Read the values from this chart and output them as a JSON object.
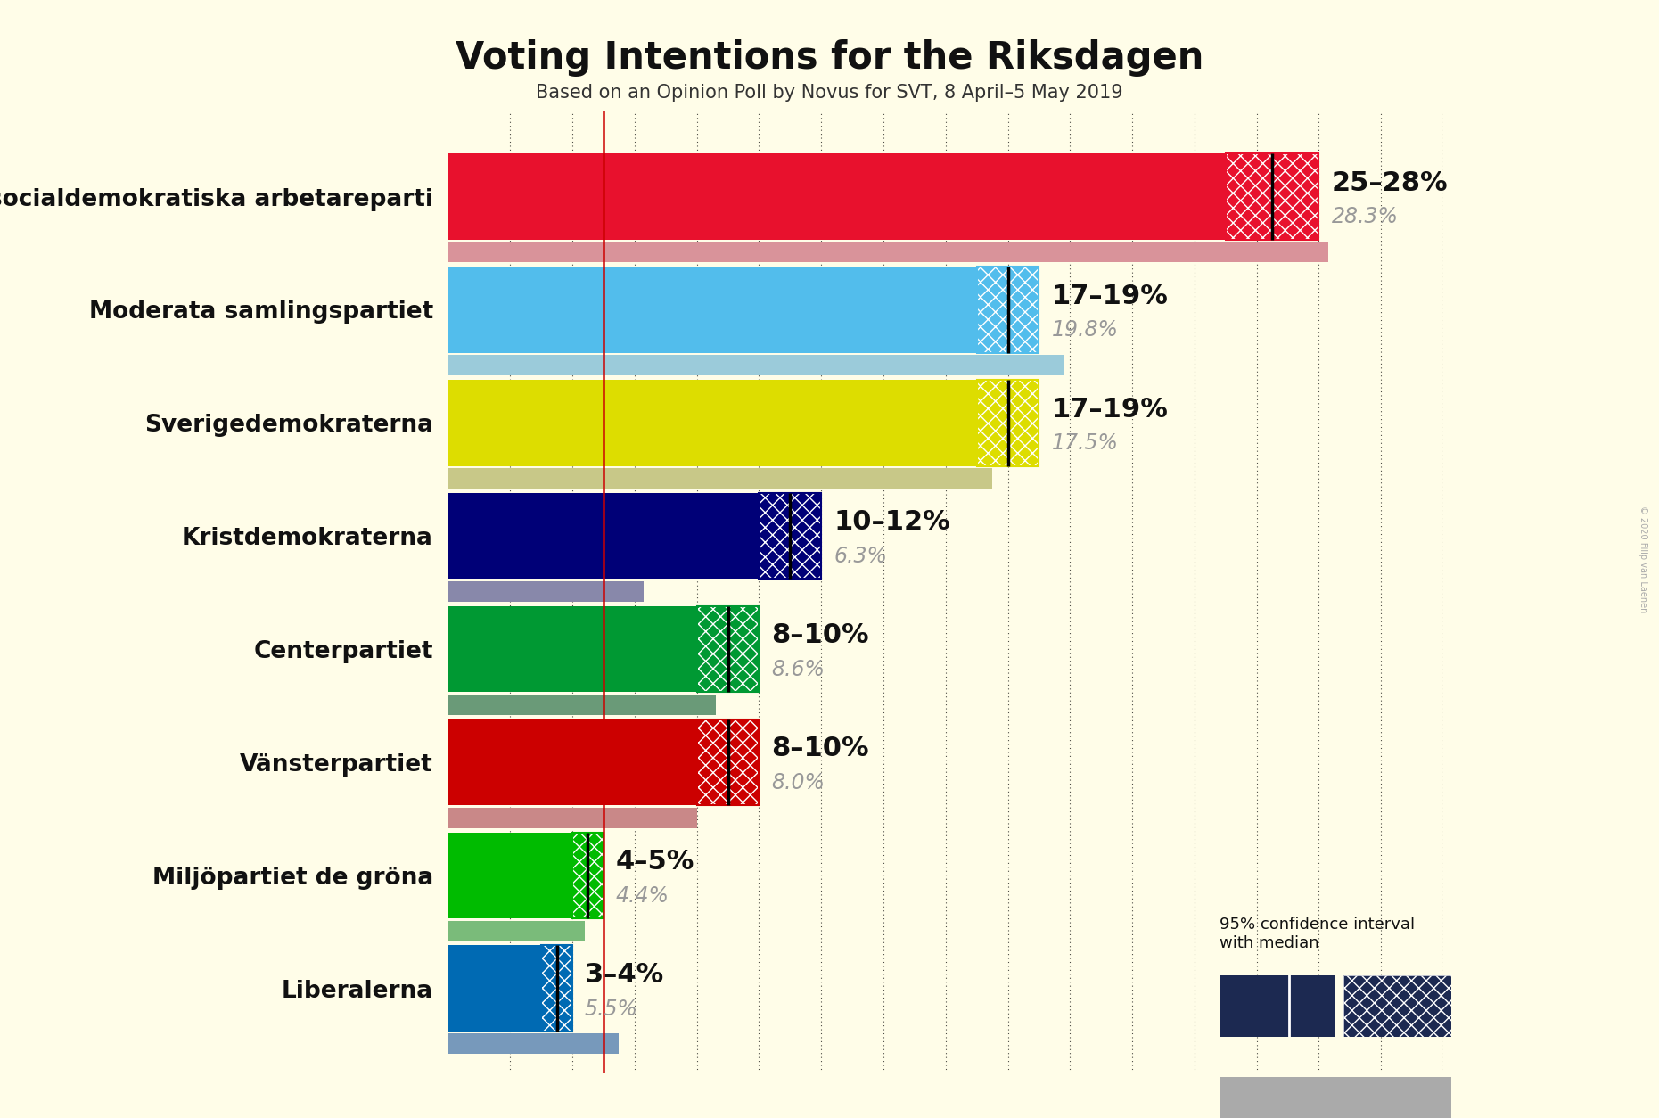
{
  "background_color": "#FFFDE8",
  "title": "Voting Intentions for the Riksdagen",
  "subtitle": "Based on an Opinion Poll by Novus for SVT, 8 April–5 May 2019",
  "copyright": "© 2020 Filip van Laenen",
  "parties": [
    {
      "name": "Sveriges socialdemokratiska arbetareparti",
      "ci_low": 25,
      "ci_high": 28,
      "median": 26.5,
      "last_result": 28.3,
      "color": "#E8112d",
      "last_result_color": "#D9939A",
      "label": "25–28%",
      "last_label": "28.3%"
    },
    {
      "name": "Moderata samlingspartiet",
      "ci_low": 17,
      "ci_high": 19,
      "median": 18.0,
      "last_result": 19.8,
      "color": "#52BDEC",
      "last_result_color": "#9BCBDA",
      "label": "17–19%",
      "last_label": "19.8%"
    },
    {
      "name": "Sverigedemokraterna",
      "ci_low": 17,
      "ci_high": 19,
      "median": 18.0,
      "last_result": 17.5,
      "color": "#DDDD00",
      "last_result_color": "#C8C888",
      "label": "17–19%",
      "last_label": "17.5%"
    },
    {
      "name": "Kristdemokraterna",
      "ci_low": 10,
      "ci_high": 12,
      "median": 11.0,
      "last_result": 6.3,
      "color": "#000077",
      "last_result_color": "#8888AA",
      "label": "10–12%",
      "last_label": "6.3%"
    },
    {
      "name": "Centerpartiet",
      "ci_low": 8,
      "ci_high": 10,
      "median": 9.0,
      "last_result": 8.6,
      "color": "#009933",
      "last_result_color": "#6A9A78",
      "label": "8–10%",
      "last_label": "8.6%"
    },
    {
      "name": "Vänsterpartiet",
      "ci_low": 8,
      "ci_high": 10,
      "median": 9.0,
      "last_result": 8.0,
      "color": "#CC0000",
      "last_result_color": "#C98888",
      "label": "8–10%",
      "last_label": "8.0%"
    },
    {
      "name": "Miljöpartiet de gröna",
      "ci_low": 4,
      "ci_high": 5,
      "median": 4.5,
      "last_result": 4.4,
      "color": "#00BB00",
      "last_result_color": "#7ABB7A",
      "label": "4–5%",
      "last_label": "4.4%"
    },
    {
      "name": "Liberalerna",
      "ci_low": 3,
      "ci_high": 4,
      "median": 3.5,
      "last_result": 5.5,
      "color": "#006AB3",
      "last_result_color": "#7799BB",
      "label": "3–4%",
      "last_label": "5.5%"
    }
  ],
  "xlim": [
    0,
    32
  ],
  "bar_height": 0.38,
  "last_bar_height": 0.18,
  "median_line_color": "#000000",
  "red_line_x": 5.0,
  "title_fontsize": 30,
  "subtitle_fontsize": 15,
  "party_fontsize": 19,
  "percent_fontsize": 22,
  "last_percent_fontsize": 17
}
